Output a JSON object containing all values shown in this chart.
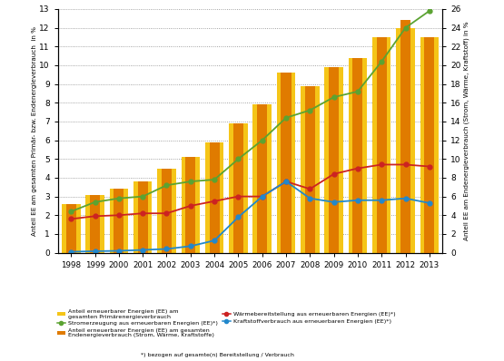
{
  "years": [
    1998,
    1999,
    2000,
    2001,
    2002,
    2003,
    2004,
    2005,
    2006,
    2007,
    2008,
    2009,
    2010,
    2011,
    2012,
    2013
  ],
  "bar_primary": [
    2.6,
    3.1,
    3.4,
    3.8,
    4.5,
    5.1,
    5.9,
    6.9,
    7.9,
    9.6,
    8.9,
    9.9,
    10.4,
    11.5,
    12.0,
    11.5
  ],
  "bar_final": [
    2.6,
    3.1,
    3.4,
    3.8,
    4.5,
    5.1,
    5.9,
    6.9,
    7.9,
    9.6,
    8.9,
    9.9,
    10.4,
    11.5,
    12.4,
    11.5
  ],
  "strom_right": [
    4.4,
    5.4,
    5.8,
    6.0,
    7.2,
    7.6,
    7.8,
    10.0,
    12.0,
    14.4,
    15.2,
    16.6,
    17.2,
    20.4,
    24.0,
    25.8
  ],
  "waerme_left": [
    1.8,
    1.95,
    2.0,
    2.1,
    2.1,
    2.5,
    2.75,
    3.0,
    3.0,
    3.8,
    3.4,
    4.2,
    4.5,
    4.7,
    4.7,
    4.6
  ],
  "kraft_left": [
    0.05,
    0.08,
    0.1,
    0.15,
    0.2,
    0.35,
    0.65,
    1.9,
    3.0,
    3.8,
    2.9,
    2.7,
    2.8,
    2.8,
    2.9,
    2.65
  ],
  "bar_color_light": "#F5C518",
  "bar_color_dark": "#E07B00",
  "line_color_strom": "#5BA332",
  "line_color_waerme": "#CC2222",
  "line_color_kraftstoff": "#2288CC",
  "ylabel_left": "Anteil EE am gesamten Primär- bzw. Endenergieverbrauch  in %",
  "ylabel_right": "Anteil EE am Endenergieverbrauch (Strom, Wärme, Kraftstoff) in %",
  "ylim_left": [
    0,
    13
  ],
  "ylim_right": [
    0,
    26
  ],
  "yticks_left": [
    0,
    1,
    2,
    3,
    4,
    5,
    6,
    7,
    8,
    9,
    10,
    11,
    12,
    13
  ],
  "yticks_right": [
    0,
    2,
    4,
    6,
    8,
    10,
    12,
    14,
    16,
    18,
    20,
    22,
    24,
    26
  ]
}
